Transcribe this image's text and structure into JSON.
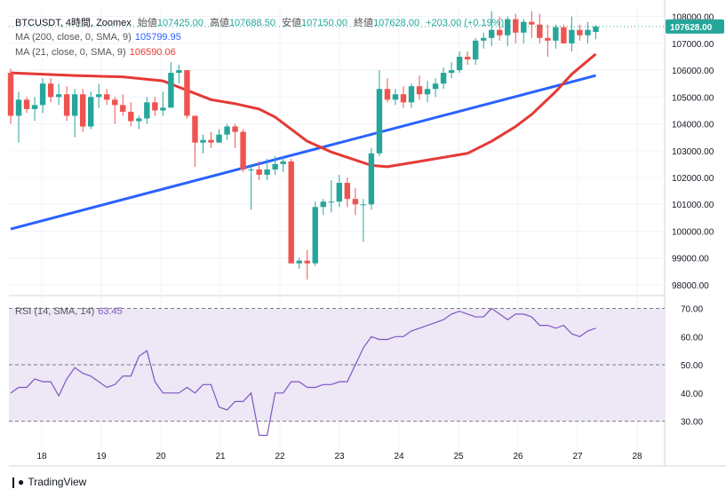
{
  "header": {
    "symbol": "BTCUSDT, 4時間, Zoomex",
    "open_label": "始値",
    "open": "107425.00",
    "high_label": "高値",
    "high": "107688.50",
    "low_label": "安値",
    "low": "107150.00",
    "close_label": "終値",
    "close": "107628.00",
    "change": "+203.00 (+0.19%)",
    "ma200_label": "MA (200, close, 0, SMA, 9)",
    "ma200_value": "105799.95",
    "ma21_label": "MA (21, close, 0, SMA, 9)",
    "ma21_value": "106590.06",
    "rsi_label": "RSI (14, SMA, 14)",
    "rsi_value": "63.45"
  },
  "price_badge": "107628.00",
  "footer": {
    "brand": "TradingView",
    "logo": "tradingview-logo-icon"
  },
  "colors": {
    "up": "#26a69a",
    "down": "#ef5350",
    "ma200": "#2962ff",
    "ma21": "#e53935",
    "rsi": "#7e57c2",
    "rsi_band": "#ede7f6",
    "grid": "#f0f3fa",
    "axis_text": "#131722"
  },
  "chart_data": {
    "type": "candlestick",
    "x_ticks": [
      "18",
      "19",
      "20",
      "21",
      "22",
      "23",
      "24",
      "25",
      "26",
      "27",
      "28"
    ],
    "y_ticks": [
      "108000.00",
      "107000.00",
      "106000.00",
      "105000.00",
      "104000.00",
      "103000.00",
      "102000.00",
      "101000.00",
      "100000.00",
      "99000.00",
      "98000.00"
    ],
    "ylim": [
      97700,
      108350
    ],
    "rsi_ticks": [
      "70.00",
      "60.00",
      "50.00",
      "40.00",
      "30.00"
    ],
    "rsi_ylim": [
      22,
      73
    ],
    "rsi_levels": [
      70,
      50,
      30
    ],
    "candles": [
      [
        105900,
        106050,
        104000,
        104300
      ],
      [
        104300,
        105200,
        103300,
        104900
      ],
      [
        104900,
        105000,
        104400,
        104550
      ],
      [
        104550,
        105000,
        104100,
        104700
      ],
      [
        104700,
        105700,
        104400,
        105500
      ],
      [
        105500,
        105700,
        104800,
        105000
      ],
      [
        105000,
        105500,
        104700,
        105100
      ],
      [
        105100,
        105400,
        104100,
        104300
      ],
      [
        104300,
        105300,
        103500,
        105100
      ],
      [
        105100,
        105300,
        103700,
        103900
      ],
      [
        103900,
        105200,
        103800,
        105000
      ],
      [
        105000,
        105500,
        104600,
        105100
      ],
      [
        105100,
        105300,
        104700,
        104900
      ],
      [
        104900,
        105000,
        104000,
        104700
      ],
      [
        104700,
        105100,
        104300,
        104450
      ],
      [
        104450,
        104800,
        103900,
        104100
      ],
      [
        104100,
        104300,
        103800,
        104200
      ],
      [
        104200,
        105000,
        104000,
        104800
      ],
      [
        104800,
        105000,
        104300,
        104500
      ],
      [
        104500,
        105200,
        104300,
        104600
      ],
      [
        104600,
        106300,
        104600,
        105900
      ],
      [
        105900,
        106200,
        105500,
        106000
      ],
      [
        106000,
        106000,
        104200,
        104300
      ],
      [
        104300,
        104300,
        102400,
        103300
      ],
      [
        103300,
        103600,
        102900,
        103400
      ],
      [
        103400,
        103700,
        103100,
        103300
      ],
      [
        103300,
        103800,
        103300,
        103600
      ],
      [
        103600,
        104000,
        103400,
        103900
      ],
      [
        103900,
        104000,
        103100,
        103700
      ],
      [
        103700,
        103800,
        102200,
        102300
      ],
      [
        102300,
        102500,
        100800,
        102300
      ],
      [
        102300,
        102600,
        101900,
        102100
      ],
      [
        102100,
        102700,
        101900,
        102300
      ],
      [
        102300,
        102800,
        102100,
        102500
      ],
      [
        102500,
        102800,
        102200,
        102600
      ],
      [
        102600,
        102700,
        98800,
        98800
      ],
      [
        98800,
        99000,
        98600,
        98900
      ],
      [
        98900,
        99300,
        98200,
        98800
      ],
      [
        98800,
        101100,
        98700,
        100900
      ],
      [
        100900,
        101200,
        100600,
        101100
      ],
      [
        101100,
        101900,
        100700,
        101100
      ],
      [
        101100,
        102100,
        100900,
        101800
      ],
      [
        101800,
        102000,
        100900,
        101200
      ],
      [
        101200,
        101600,
        100600,
        101000
      ],
      [
        101000,
        101200,
        99600,
        101000
      ],
      [
        101000,
        103100,
        100800,
        102900
      ],
      [
        102900,
        106000,
        102800,
        105300
      ],
      [
        105300,
        105700,
        104800,
        104900
      ],
      [
        104900,
        105300,
        104700,
        105100
      ],
      [
        105100,
        105400,
        104600,
        104800
      ],
      [
        104800,
        105500,
        104600,
        105400
      ],
      [
        105400,
        105800,
        104900,
        105100
      ],
      [
        105100,
        105600,
        104800,
        105300
      ],
      [
        105300,
        105700,
        105000,
        105500
      ],
      [
        105500,
        106100,
        105300,
        105900
      ],
      [
        105900,
        106300,
        105700,
        106000
      ],
      [
        106000,
        106700,
        105900,
        106500
      ],
      [
        106500,
        106700,
        106200,
        106400
      ],
      [
        106400,
        107200,
        106200,
        107100
      ],
      [
        107100,
        107400,
        106800,
        107200
      ],
      [
        107200,
        108200,
        106900,
        107500
      ],
      [
        107500,
        108000,
        107100,
        107300
      ],
      [
        107300,
        108000,
        106900,
        107900
      ],
      [
        107900,
        108100,
        107000,
        107400
      ],
      [
        107400,
        107900,
        107000,
        107800
      ],
      [
        107800,
        108200,
        107200,
        107700
      ],
      [
        107700,
        108100,
        107000,
        107200
      ],
      [
        107200,
        107700,
        106500,
        107100
      ],
      [
        107100,
        107700,
        106800,
        107600
      ],
      [
        107600,
        107700,
        107000,
        107000
      ],
      [
        107000,
        108000,
        106700,
        107500
      ],
      [
        107500,
        107700,
        107100,
        107300
      ],
      [
        107300,
        107800,
        107000,
        107500
      ],
      [
        107425,
        107688,
        107150,
        107628
      ]
    ],
    "ma200": [
      [
        0,
        100080
      ],
      [
        73,
        105800
      ]
    ],
    "ma21": [
      [
        0,
        105900
      ],
      [
        8,
        105800
      ],
      [
        14,
        105750
      ],
      [
        19,
        105600
      ],
      [
        22,
        105250
      ],
      [
        25,
        104900
      ],
      [
        28,
        104750
      ],
      [
        31,
        104550
      ],
      [
        33,
        104250
      ],
      [
        35,
        103800
      ],
      [
        37,
        103350
      ],
      [
        40,
        102950
      ],
      [
        43,
        102650
      ],
      [
        45,
        102450
      ],
      [
        47,
        102400
      ],
      [
        49,
        102500
      ],
      [
        52,
        102650
      ],
      [
        57,
        102900
      ],
      [
        60,
        103350
      ],
      [
        63,
        103900
      ],
      [
        65,
        104350
      ],
      [
        68,
        105200
      ],
      [
        70,
        105850
      ],
      [
        73,
        106600
      ]
    ],
    "rsi": [
      40,
      42,
      42,
      45,
      44,
      44,
      39,
      45,
      49,
      47,
      46,
      44,
      42,
      43,
      46,
      46,
      53,
      55,
      44,
      40,
      40,
      40,
      42,
      40,
      43,
      43,
      35,
      34,
      37,
      37,
      40,
      25,
      25,
      40,
      40,
      44,
      44,
      42,
      42,
      43,
      43,
      44,
      44,
      50,
      56,
      60,
      59,
      59,
      60,
      60,
      62,
      63,
      64,
      65,
      66,
      68,
      69,
      68,
      67,
      67,
      70,
      68,
      66,
      68,
      68,
      67,
      64,
      64,
      63,
      64,
      61,
      60,
      62,
      63
    ],
    "ylabel": "",
    "xlabel": ""
  }
}
